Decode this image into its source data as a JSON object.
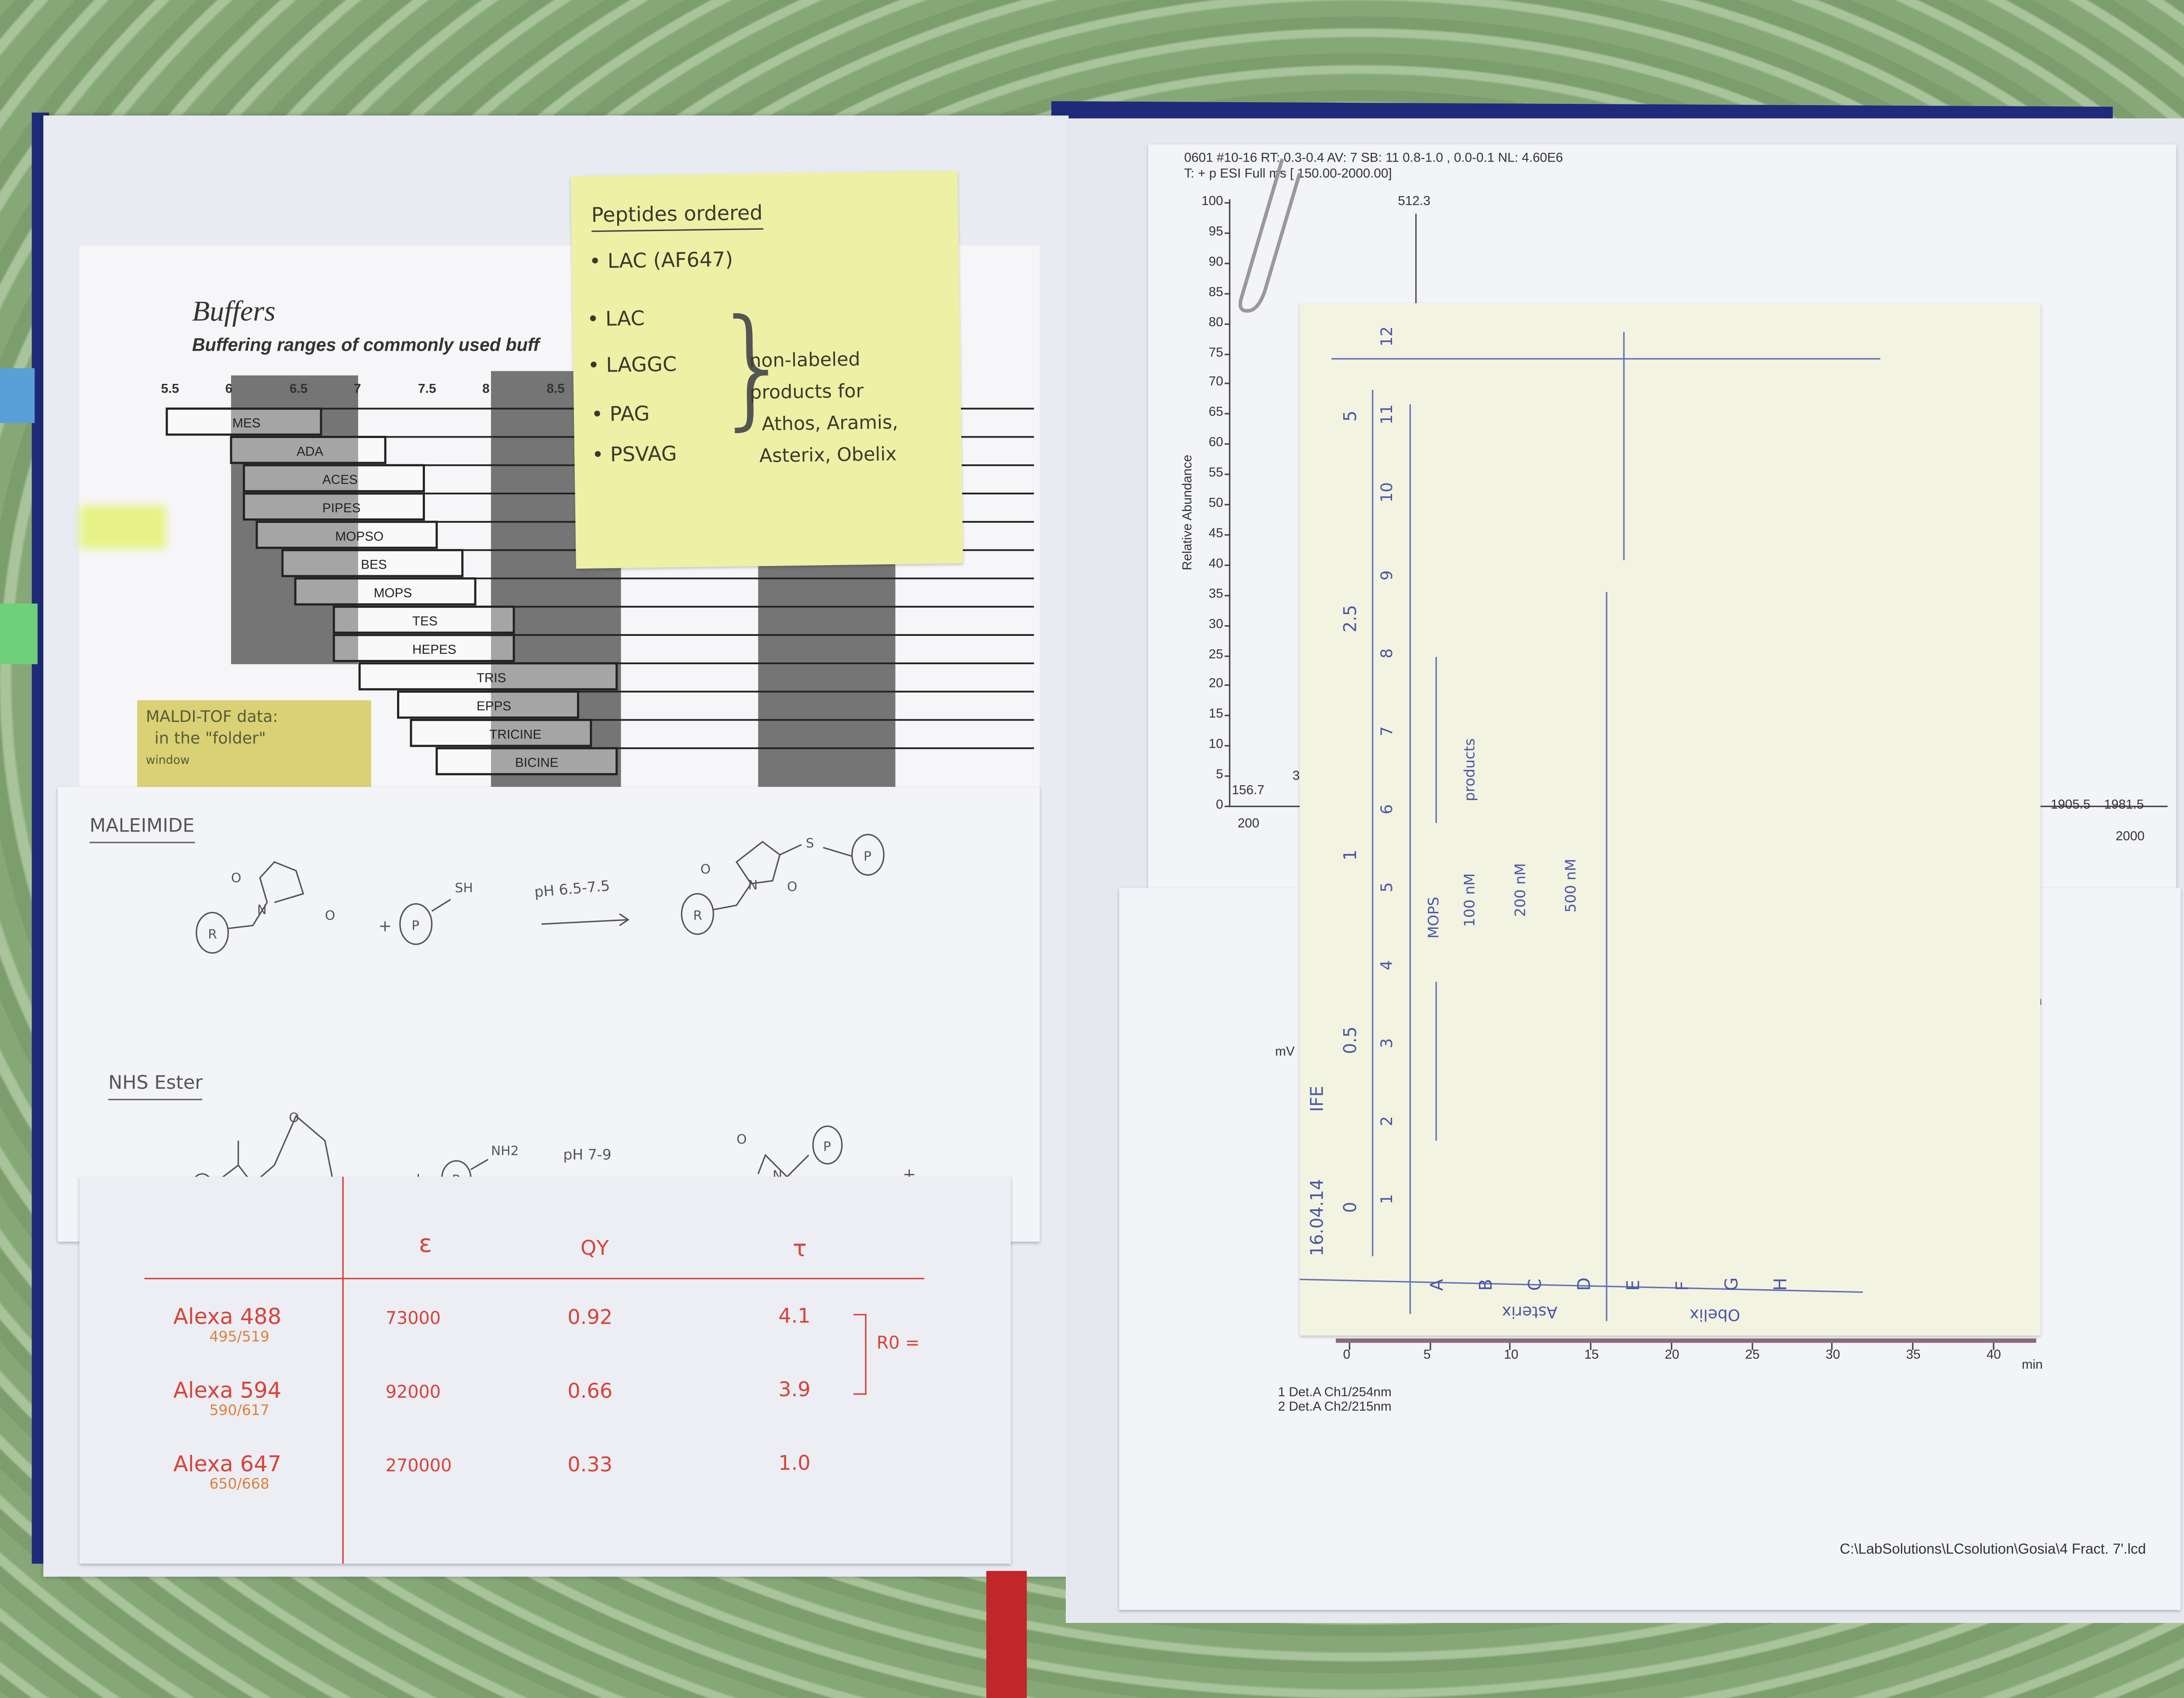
{
  "buffers_sheet": {
    "title": "Buffers",
    "subtitle": "Buffering ranges of commonly used buff",
    "ph_ticks": [
      "5.5",
      "6",
      "6.5",
      "7",
      "7.5",
      "8",
      "8.5"
    ],
    "buffers": [
      {
        "name": "MES",
        "range": [
          5.5,
          6.7
        ]
      },
      {
        "name": "ADA",
        "range": [
          6.0,
          7.2
        ]
      },
      {
        "name": "ACES",
        "range": [
          6.1,
          7.5
        ]
      },
      {
        "name": "PIPES",
        "range": [
          6.1,
          7.5
        ]
      },
      {
        "name": "MOPSO",
        "range": [
          6.2,
          7.6
        ]
      },
      {
        "name": "BES",
        "range": [
          6.4,
          7.8
        ]
      },
      {
        "name": "MOPS",
        "range": [
          6.5,
          7.9
        ]
      },
      {
        "name": "TES",
        "range": [
          6.8,
          8.2
        ]
      },
      {
        "name": "HEPES",
        "range": [
          6.8,
          8.2
        ]
      },
      {
        "name": "TRIS",
        "range": [
          7.0,
          9.0
        ]
      },
      {
        "name": "EPPS",
        "range": [
          7.3,
          8.7
        ]
      },
      {
        "name": "TRICINE",
        "range": [
          7.4,
          8.8
        ]
      },
      {
        "name": "BICINE",
        "range": [
          7.6,
          9.0
        ]
      }
    ]
  },
  "sticky_note": {
    "title": "Peptides ordered",
    "items": [
      "LAC (AF647)",
      "LAC",
      "LAGGC",
      "PAG",
      "PSVAG"
    ],
    "bracket_note": [
      "non-labeled",
      "products for",
      "Athos, Aramis,",
      "Asterix, Obelix"
    ],
    "color": "#eef0a6"
  },
  "maldi_note": {
    "lines": [
      "MALDI-TOF data:",
      "in the \"folder\"",
      "window"
    ],
    "color": "#d9d173"
  },
  "chem_sheet": {
    "maleimide_title": "MALEIMIDE",
    "maleimide_condition": "pH 6.5-7.5",
    "thiol": "SH",
    "nhs_title": "NHS Ester",
    "nhs_condition": "pH 7-9",
    "amine": "NH2",
    "plus": "+",
    "atoms": {
      "o": "O",
      "n": "N",
      "s": "S",
      "r": "R",
      "p": "P"
    }
  },
  "dye_table": {
    "headers": [
      "ε",
      "QY",
      "τ"
    ],
    "rows": [
      {
        "name": "Alexa 488",
        "sub": "495/519",
        "epsilon": "73000",
        "qy": "0.92",
        "tau": "4.1"
      },
      {
        "name": "Alexa 594",
        "sub": "590/617",
        "epsilon": "92000",
        "qy": "0.66",
        "tau": "3.9"
      },
      {
        "name": "Alexa 647",
        "sub": "650/668",
        "epsilon": "270000",
        "qy": "0.33",
        "tau": "1.0"
      }
    ],
    "bracket_label": "R0 =",
    "color": "#d9423a"
  },
  "mass_spec": {
    "header_line1": "0601 #10-16  RT: 0.3-0.4  AV: 7  SB: 11 0.8-1.0 , 0.0-0.1  NL: 4.60E6",
    "header_line2": "T: + p ESI Full ms [ 150.00-2000.00]",
    "ylabel": "Relative Abundance",
    "y_ticks": [
      "0",
      "5",
      "10",
      "15",
      "20",
      "25",
      "30",
      "35",
      "40",
      "45",
      "50",
      "55",
      "60",
      "65",
      "70",
      "75",
      "80",
      "85",
      "90",
      "95",
      "100"
    ],
    "x_ticks": [
      "200",
      "2000"
    ],
    "partial_x_tick": "00",
    "peak_labels": [
      {
        "mz": "512.3",
        "abundance": 100
      },
      {
        "mz": "156.7",
        "abundance": 2
      },
      {
        "mz": "1905.5",
        "abundance": 1
      },
      {
        "mz": "1981.5",
        "abundance": 1
      }
    ],
    "stray_label": "3"
  },
  "chromatogram": {
    "ylabel": "mV",
    "x_ticks": [
      "0",
      "5",
      "10",
      "15",
      "20",
      "25",
      "30",
      "35",
      "40"
    ],
    "xlabel": "min",
    "legend": [
      "1  Det.A Ch1/254nm",
      "2  Det.A Ch2/215nm"
    ],
    "file_path": "C:\\LabSolutions\\LCsolution\\Gosia\\4 Fract. 7'.lcd",
    "partial_label": "in"
  },
  "plate_note": {
    "date": "16.04.14",
    "tag": "IFE",
    "conc_row": [
      "0",
      "0.5",
      "1",
      "2.5",
      "5"
    ],
    "col_numbers": [
      "1",
      "2",
      "3",
      "4",
      "5",
      "6",
      "7",
      "8",
      "9",
      "10",
      "11",
      "12"
    ],
    "mops": "MOPS",
    "conc_labels": [
      "100 nM",
      "200 nM",
      "500 nM"
    ],
    "products": "products",
    "rows": [
      "A",
      "B",
      "C",
      "D",
      "E",
      "F",
      "G",
      "H"
    ],
    "group_labels": [
      "Asterix",
      "Obelix"
    ],
    "ink": "#4a56a6"
  }
}
